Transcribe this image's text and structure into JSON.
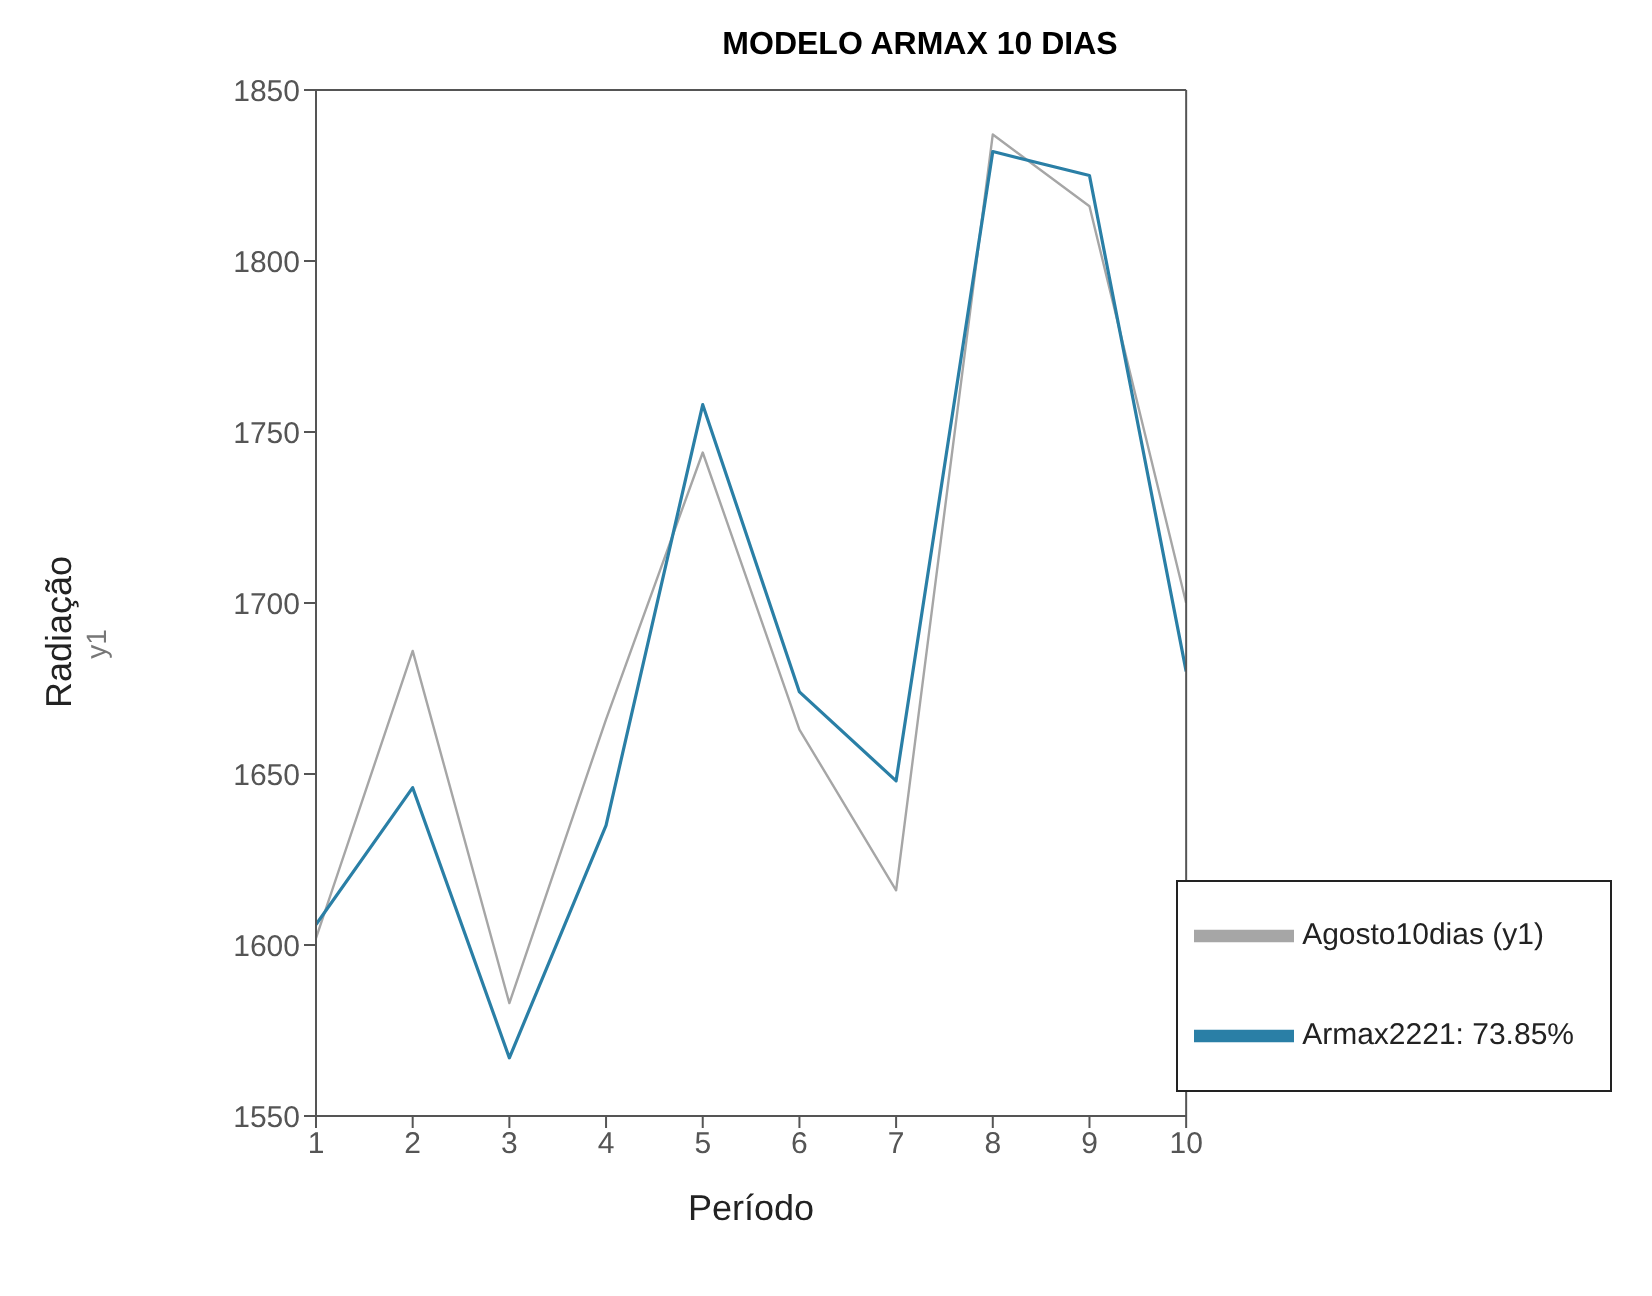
{
  "chart_data": {
    "type": "line",
    "title": "MODELO ARMAX 10 DIAS",
    "xlabel": "Período",
    "ylabel": "Radiação",
    "annotations": [
      "y1"
    ],
    "x": [
      1,
      2,
      3,
      4,
      5,
      6,
      7,
      8,
      9,
      10
    ],
    "series": [
      {
        "name": "Agosto10dias (y1)",
        "color": "#a6a6a6",
        "values": [
          1602,
          1686,
          1583,
          1666,
          1744,
          1663,
          1616,
          1837,
          1816,
          1700
        ]
      },
      {
        "name": "Armax2221: 73.85%",
        "color": "#2a7fa6",
        "values": [
          1606,
          1646,
          1567,
          1635,
          1758,
          1674,
          1648,
          1832,
          1825,
          1680
        ]
      }
    ],
    "xlim": [
      1,
      10
    ],
    "xticks": [
      1,
      2,
      3,
      4,
      5,
      6,
      7,
      8,
      9,
      10
    ],
    "ylim": [
      1550,
      1850
    ],
    "yticks": [
      1550,
      1600,
      1650,
      1700,
      1750,
      1800,
      1850
    ],
    "grid": false,
    "legend": "bottom right",
    "marker": "none",
    "line_style": "solid"
  }
}
